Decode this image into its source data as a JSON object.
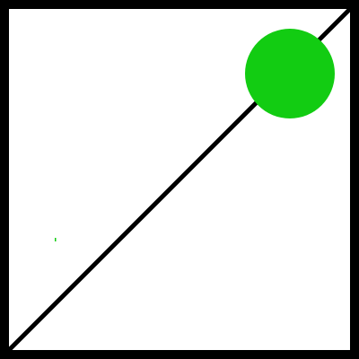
{
  "scene": {
    "background_color": "#ffffff",
    "frame_color": "#000000",
    "line_color": "#000000",
    "circle_color": "#12cc12",
    "speck_color": "#12cc12"
  }
}
